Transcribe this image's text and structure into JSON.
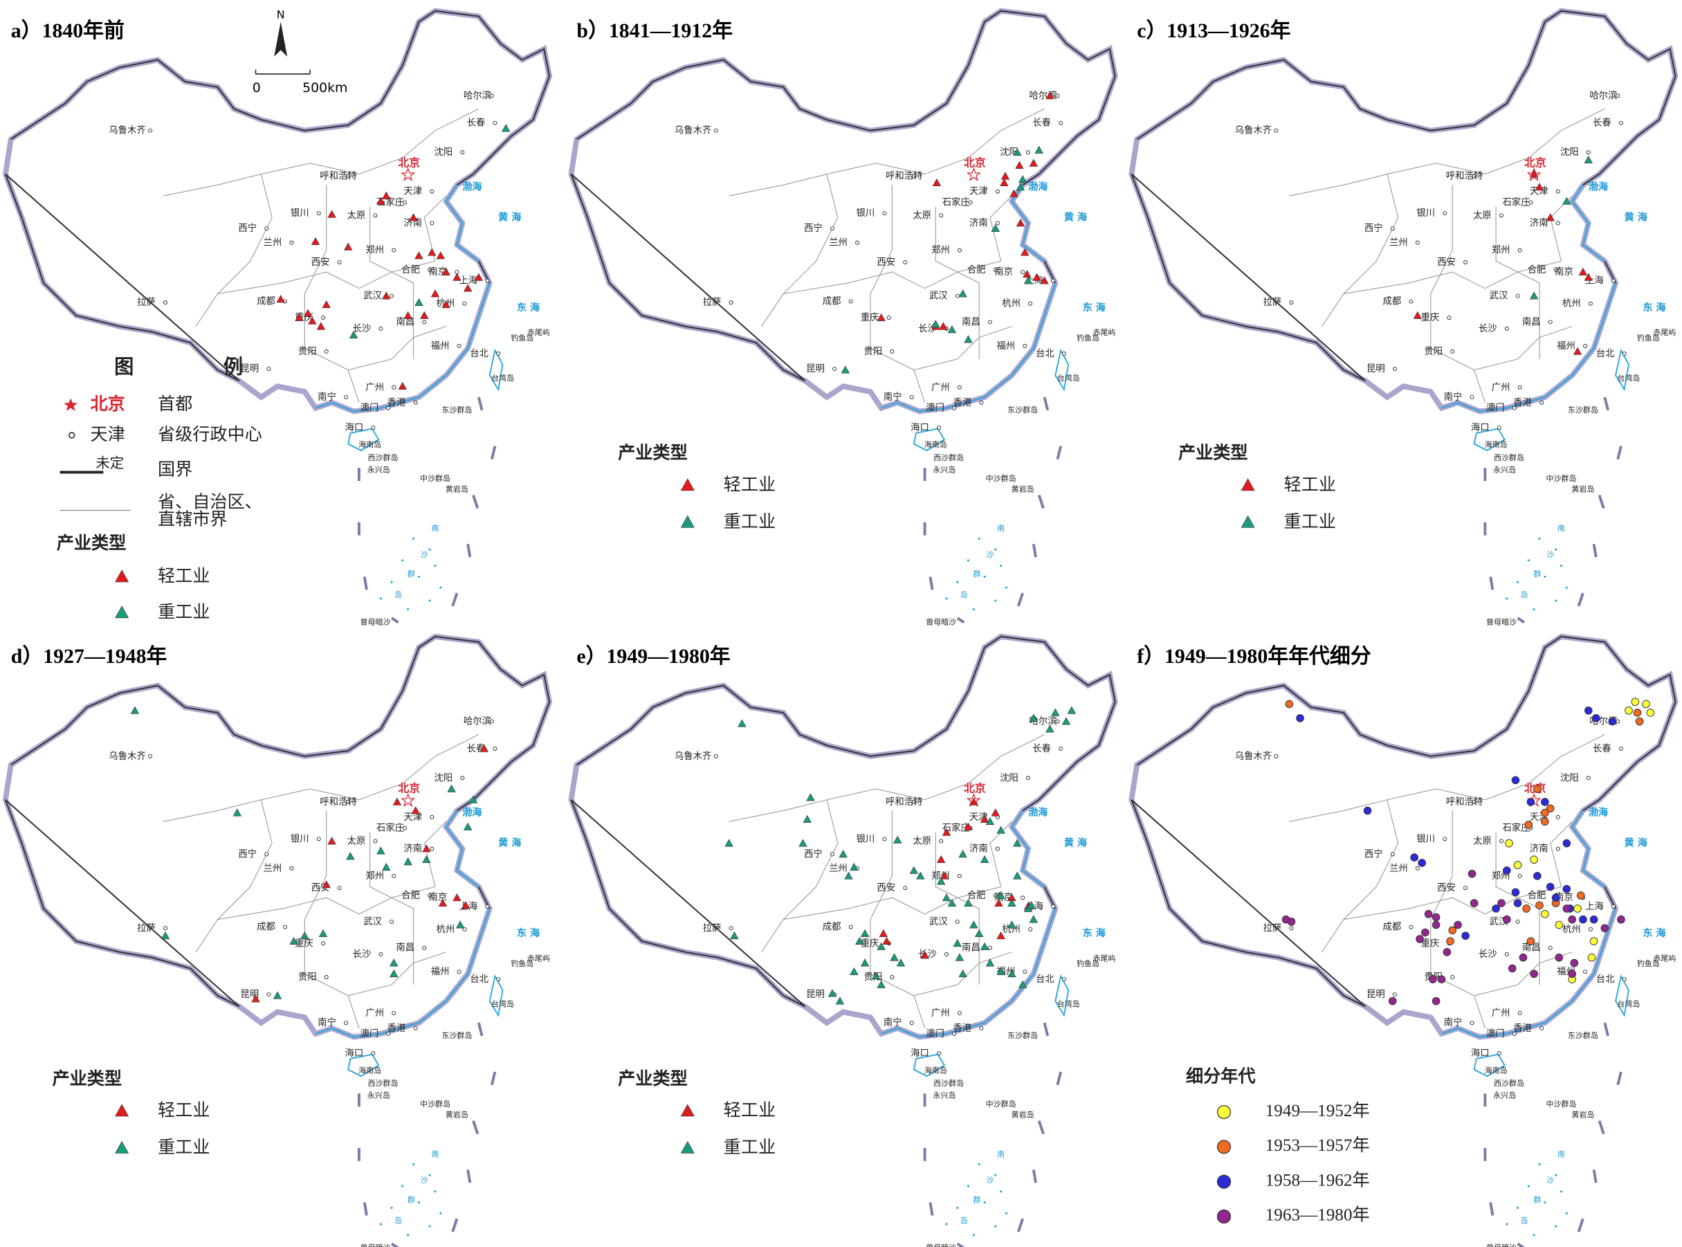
{
  "panels": [
    {
      "title": "a）1840年前",
      "legend": "industry"
    },
    {
      "title": "b）1841—1912年",
      "legend": "industry"
    },
    {
      "title": "c）1913—1926年",
      "legend": "industry"
    },
    {
      "title": "d）1927—1948年",
      "legend": "industry"
    },
    {
      "title": "e）1949—1980年",
      "legend": "industry"
    },
    {
      "title": "f）1949—1980年年代细分",
      "legend": "period"
    }
  ],
  "capital": {
    "name": "北京",
    "color": "#d9232e"
  },
  "cities": [
    "乌鲁木齐",
    "哈尔滨",
    "长春",
    "沈阳",
    "呼和浩特",
    "天津",
    "石家庄",
    "银川",
    "太原",
    "济南",
    "西宁",
    "兰州",
    "郑州",
    "西安",
    "合肥",
    "南京",
    "上海",
    "拉萨",
    "成都",
    "武汉",
    "杭州",
    "重庆",
    "长沙",
    "南昌",
    "贵阳",
    "福州",
    "台北",
    "昆明",
    "南宁",
    "广州",
    "澳门",
    "香港",
    "海口"
  ],
  "places": [
    "台湾岛",
    "海南岛",
    "东沙群岛",
    "西沙群岛",
    "永兴岛",
    "中沙群岛",
    "黄岩岛",
    "钓鱼岛",
    "赤尾屿",
    "曾母暗沙",
    "南",
    "沙",
    "群",
    "岛"
  ],
  "seas": [
    "渤海",
    "黄 海",
    "东 海"
  ],
  "compass": {
    "north": "N",
    "scale_start": "0",
    "scale_end": "500km"
  },
  "map_legend": {
    "title": "图 例",
    "capital_sample": "北京",
    "capital_desc": "首都",
    "city_sample": "天津",
    "city_desc": "省级行政中心",
    "border_note": "未定",
    "border_desc": "国界",
    "province_desc": [
      "省、自治区、",
      "直辖市界"
    ]
  },
  "industry_legend": {
    "title": "产业类型",
    "items": [
      {
        "name": "轻工业",
        "color": "#e31a1c"
      },
      {
        "name": "重工业",
        "color": "#1b9a7c"
      }
    ]
  },
  "period_legend": {
    "title": "细分年代",
    "items": [
      {
        "name": "1949—1952年",
        "color": "#ffff3a"
      },
      {
        "name": "1953—1957年",
        "color": "#f26a21"
      },
      {
        "name": "1958—1962年",
        "color": "#2d2bd8"
      },
      {
        "name": "1963—1980年",
        "color": "#93268f"
      }
    ]
  }
}
